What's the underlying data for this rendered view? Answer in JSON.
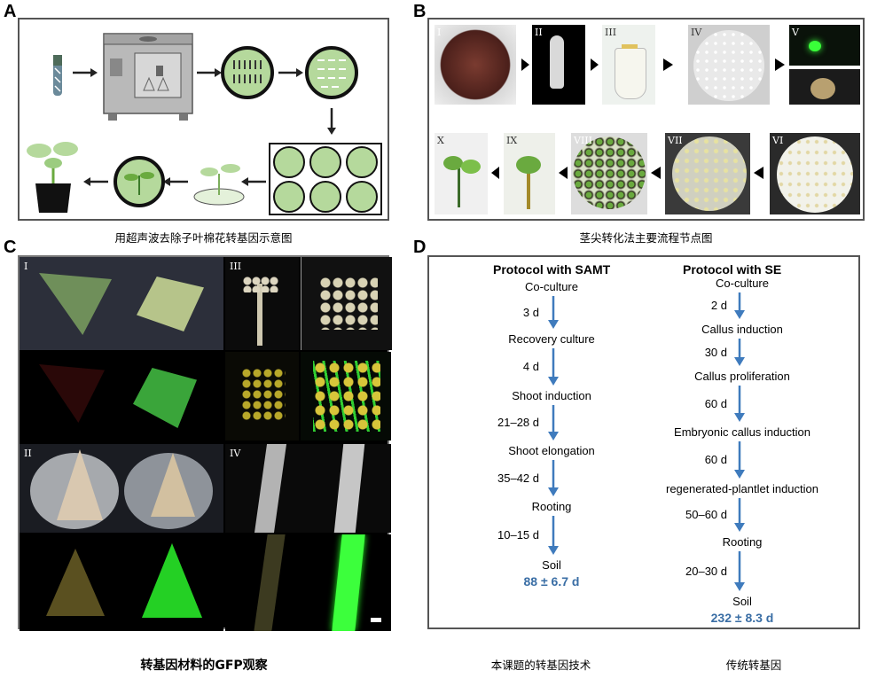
{
  "panels": {
    "A": {
      "label": "A",
      "caption": "用超声波去除子叶棉花转基因示意图"
    },
    "B": {
      "label": "B",
      "caption": "茎尖转化法主要流程节点图",
      "numerals": [
        "I",
        "II",
        "III",
        "IV",
        "V",
        "VI",
        "VII",
        "VIII",
        "IX",
        "X"
      ]
    },
    "C": {
      "label": "C",
      "caption": "转基因材料的GFP观察",
      "numerals": [
        "I",
        "II",
        "III",
        "IV"
      ]
    },
    "D": {
      "label": "D",
      "samt": {
        "title": "Protocol with SAMT",
        "steps": [
          "Co-culture",
          "Recovery culture",
          "Shoot induction",
          "Shoot elongation",
          "Rooting",
          "Soil"
        ],
        "durations": [
          "3 d",
          "4 d",
          "21–28 d",
          "35–42 d",
          "10–15 d"
        ],
        "total": "88 ± 6.7 d",
        "caption": "本课题的转基因技术"
      },
      "se": {
        "title": "Protocol with SE",
        "steps": [
          "Co-culture",
          "Callus induction",
          "Callus proliferation",
          "Embryonic callus induction",
          "regenerated-plantlet induction",
          "Rooting",
          "Soil"
        ],
        "durations": [
          "2 d",
          "30 d",
          "60 d",
          "60 d",
          "50–60 d",
          "20–30 d"
        ],
        "total": "232 ± 8.3 d",
        "caption": "传统转基因"
      }
    }
  },
  "colors": {
    "arrow": "#3f7bbd",
    "total": "#3a6ea5",
    "frame": "#555555",
    "leafGreen": "#b5d99c"
  }
}
